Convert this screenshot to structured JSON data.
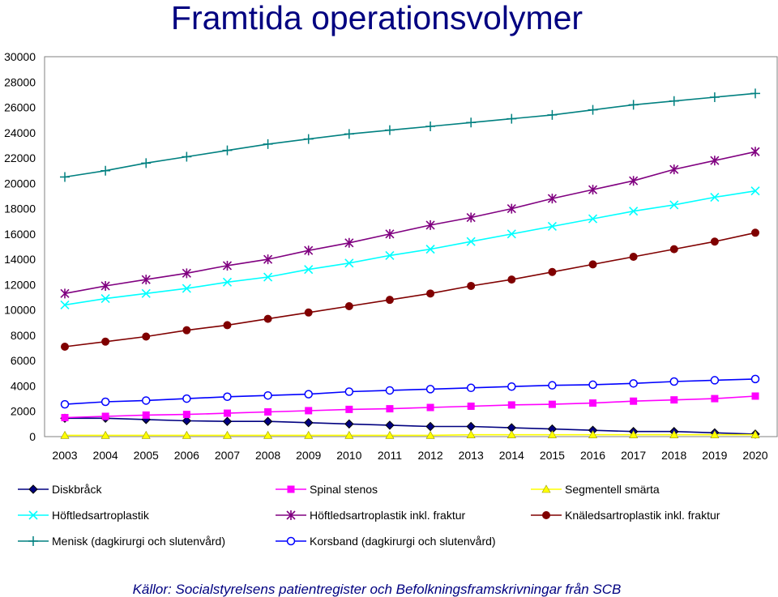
{
  "chart_data": {
    "type": "line",
    "title": "Framtida operationsvolymer",
    "xlabel": "",
    "ylabel": "",
    "x": [
      "2003",
      "2004",
      "2005",
      "2006",
      "2007",
      "2008",
      "2009",
      "2010",
      "2011",
      "2012",
      "2013",
      "2014",
      "2015",
      "2016",
      "2017",
      "2018",
      "2019",
      "2020"
    ],
    "ylim": [
      0,
      30000
    ],
    "yticks": [
      0,
      2000,
      4000,
      6000,
      8000,
      10000,
      12000,
      14000,
      16000,
      18000,
      20000,
      22000,
      24000,
      26000,
      28000,
      30000
    ],
    "grid": false,
    "legend_position": "bottom",
    "series": [
      {
        "name": "Diskbråck",
        "color": "#000080",
        "marker": "diamond",
        "values": [
          1450,
          1450,
          1350,
          1250,
          1200,
          1200,
          1100,
          1000,
          900,
          800,
          800,
          700,
          600,
          500,
          400,
          400,
          300,
          200
        ]
      },
      {
        "name": "Spinal stenos",
        "color": "#ff00ff",
        "marker": "square",
        "values": [
          1500,
          1600,
          1700,
          1750,
          1850,
          1950,
          2050,
          2150,
          2200,
          2300,
          2400,
          2500,
          2550,
          2650,
          2800,
          2900,
          3000,
          3200
        ]
      },
      {
        "name": "Segmentell smärta",
        "color": "#ffff00",
        "marker": "triangle",
        "values": [
          100,
          100,
          100,
          100,
          100,
          100,
          100,
          100,
          100,
          100,
          150,
          150,
          150,
          150,
          150,
          150,
          150,
          150
        ]
      },
      {
        "name": "Höftledsartroplastik",
        "color": "#00ffff",
        "marker": "x",
        "values": [
          10400,
          10900,
          11300,
          11700,
          12200,
          12600,
          13200,
          13700,
          14300,
          14800,
          15400,
          16000,
          16600,
          17200,
          17800,
          18300,
          18900,
          19400
        ]
      },
      {
        "name": "Höftledsartroplastik inkl. fraktur",
        "color": "#800080",
        "marker": "star",
        "values": [
          11300,
          11900,
          12400,
          12900,
          13500,
          14000,
          14700,
          15300,
          16000,
          16700,
          17300,
          18000,
          18800,
          19500,
          20200,
          21100,
          21800,
          22500
        ]
      },
      {
        "name": "Knäledsartroplastik inkl. fraktur",
        "color": "#800000",
        "marker": "circle",
        "values": [
          7100,
          7500,
          7900,
          8400,
          8800,
          9300,
          9800,
          10300,
          10800,
          11300,
          11900,
          12400,
          13000,
          13600,
          14200,
          14800,
          15400,
          16100
        ]
      },
      {
        "name": "Menisk (dagkirurgi och slutenvård)",
        "color": "#008080",
        "marker": "plus",
        "values": [
          20500,
          21000,
          21600,
          22100,
          22600,
          23100,
          23500,
          23900,
          24200,
          24500,
          24800,
          25100,
          25400,
          25800,
          26200,
          26500,
          26800,
          27100
        ]
      },
      {
        "name": "Korsband (dagkirurgi och slutenvård)",
        "color": "#0000ff",
        "marker": "circle-open",
        "values": [
          2550,
          2750,
          2850,
          3000,
          3150,
          3250,
          3350,
          3550,
          3650,
          3750,
          3850,
          3950,
          4050,
          4100,
          4200,
          4350,
          4450,
          4550
        ]
      }
    ],
    "source": "Källor: Socialstyrelsens patientregister och  Befolkningsframskrivningar från SCB"
  }
}
